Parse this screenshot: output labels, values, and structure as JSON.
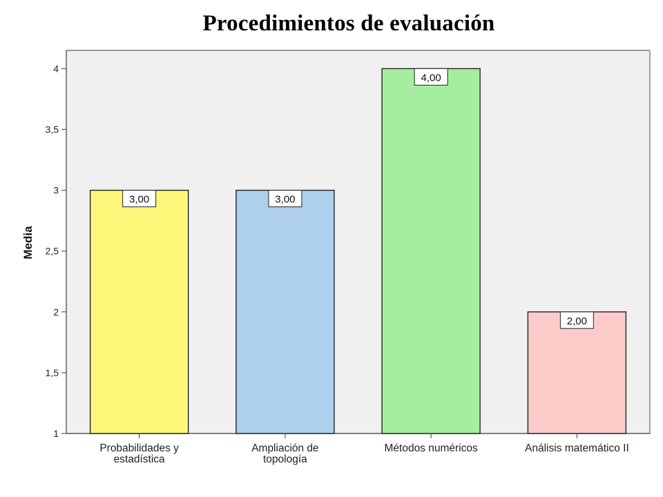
{
  "chart_data": {
    "type": "bar",
    "title": "Procedimientos de evaluación",
    "xlabel": "",
    "ylabel": "Media",
    "ylim": [
      1,
      4.15
    ],
    "yticks": [
      {
        "value": 1,
        "label": "1"
      },
      {
        "value": 1.5,
        "label": "1,5"
      },
      {
        "value": 2,
        "label": "2"
      },
      {
        "value": 2.5,
        "label": "2,5"
      },
      {
        "value": 3,
        "label": "3"
      },
      {
        "value": 3.5,
        "label": "3,5"
      },
      {
        "value": 4,
        "label": "4"
      }
    ],
    "categories": [
      [
        "Probabilidades y",
        "estadística"
      ],
      [
        "Ampliación de",
        "topología"
      ],
      [
        "Métodos numéricos"
      ],
      [
        "Análisis matemático II"
      ]
    ],
    "values": [
      3,
      3,
      4,
      2
    ],
    "data_labels": [
      "3,00",
      "3,00",
      "4,00",
      "2,00"
    ],
    "colors": [
      "#fdf77a",
      "#aecfee",
      "#a6ee9f",
      "#fecbcb"
    ],
    "plot_background": "#f0f0f0",
    "grid": false,
    "legend": "none"
  }
}
